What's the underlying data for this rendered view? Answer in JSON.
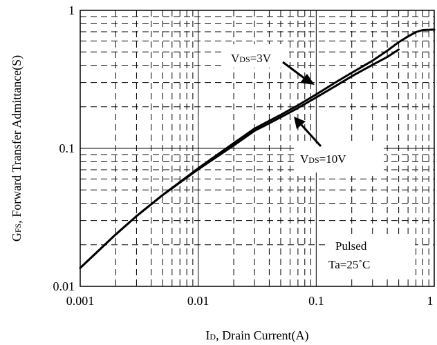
{
  "chart_data": {
    "type": "line",
    "title": "",
    "xlabel": {
      "main": "I",
      "sub": "D",
      "rest": ", Drain Current(A)"
    },
    "ylabel": {
      "main": "G",
      "sub": "FS",
      "rest": ", Forward Transfer Admittance(S)"
    },
    "xscale": "log",
    "yscale": "log",
    "xlim": [
      0.001,
      1
    ],
    "ylim": [
      0.01,
      1
    ],
    "xticks": [
      {
        "value": 0.001,
        "label": "0.001"
      },
      {
        "value": 0.01,
        "label": "0.01"
      },
      {
        "value": 0.1,
        "label": "0.1"
      },
      {
        "value": 1,
        "label": "1"
      }
    ],
    "yticks": [
      {
        "value": 0.01,
        "label": "0.01"
      },
      {
        "value": 0.1,
        "label": "0.1"
      },
      {
        "value": 1,
        "label": "1"
      }
    ],
    "grid": {
      "major": true,
      "minor": true,
      "minor_style": "dashed"
    },
    "series": [
      {
        "label": {
          "main": "V",
          "sub": "DS",
          "rest": "=3V"
        },
        "x": [
          0.001,
          0.002,
          0.003,
          0.005,
          0.01,
          0.02,
          0.03,
          0.05,
          0.07,
          0.1,
          0.15,
          0.2,
          0.3,
          0.4,
          0.5,
          0.6,
          0.7,
          0.8,
          1.0
        ],
        "y": [
          0.0136,
          0.0238,
          0.0323,
          0.0459,
          0.0717,
          0.109,
          0.139,
          0.175,
          0.205,
          0.246,
          0.305,
          0.353,
          0.432,
          0.51,
          0.588,
          0.647,
          0.696,
          0.72,
          0.725
        ]
      },
      {
        "label": {
          "main": "V",
          "sub": "DS",
          "rest": "=10V"
        },
        "x": [
          0.001,
          0.002,
          0.003,
          0.005,
          0.01,
          0.02,
          0.03,
          0.05,
          0.07,
          0.1,
          0.15,
          0.2,
          0.3,
          0.4,
          0.5
        ],
        "y": [
          0.0136,
          0.0238,
          0.0323,
          0.0459,
          0.0705,
          0.105,
          0.134,
          0.168,
          0.196,
          0.234,
          0.287,
          0.333,
          0.403,
          0.459,
          0.52
        ]
      }
    ],
    "annotations": [
      {
        "id": "vds3",
        "text": {
          "main": "V",
          "sub": "DS",
          "rest": "=3V"
        }
      },
      {
        "id": "vds10",
        "text": {
          "main": "V",
          "sub": "DS",
          "rest": "=10V"
        }
      },
      {
        "id": "conditions",
        "lines": [
          "Pulsed",
          "Ta=25˚C"
        ]
      }
    ]
  }
}
